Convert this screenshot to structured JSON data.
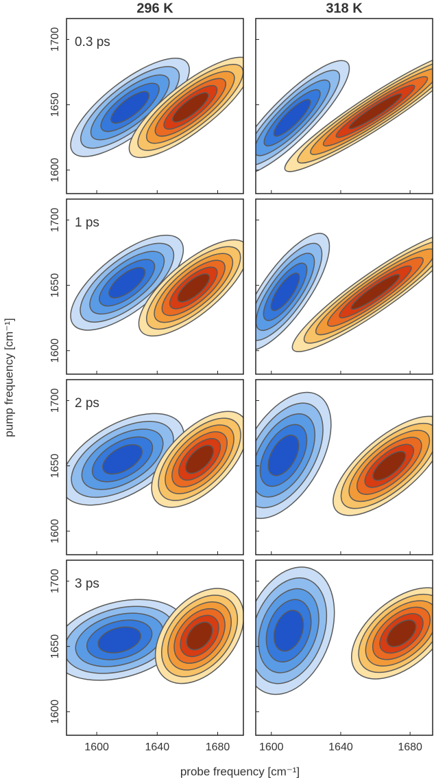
{
  "figure": {
    "xlabel": "probe frequency [cm⁻¹]",
    "ylabel": "pump frequency [cm⁻¹]"
  },
  "chart_data": [
    {
      "type": "contour",
      "title": "296 K",
      "label": "0.3 ps",
      "xlim": [
        1580,
        1697
      ],
      "ylim": [
        1582,
        1716
      ],
      "xticks": [
        1600,
        1640,
        1680
      ],
      "yticks": [
        1600,
        1650,
        1700
      ]
    },
    {
      "type": "contour",
      "title": "318 K",
      "xlim": [
        1591,
        1693
      ],
      "ylim": [
        1582,
        1716
      ],
      "xticks": [
        1600,
        1640,
        1680
      ],
      "yticks": [
        1600,
        1650,
        1700
      ]
    },
    {
      "type": "contour",
      "label": "1 ps",
      "xlim": [
        1580,
        1697
      ],
      "ylim": [
        1582,
        1716
      ],
      "xticks": [
        1600,
        1640,
        1680
      ],
      "yticks": [
        1600,
        1650,
        1700
      ]
    },
    {
      "type": "contour",
      "xlim": [
        1591,
        1693
      ],
      "ylim": [
        1582,
        1716
      ],
      "xticks": [
        1600,
        1640,
        1680
      ],
      "yticks": [
        1600,
        1650,
        1700
      ]
    },
    {
      "type": "contour",
      "label": "2 ps",
      "xlim": [
        1580,
        1697
      ],
      "ylim": [
        1582,
        1716
      ],
      "xticks": [
        1600,
        1640,
        1680
      ],
      "yticks": [
        1600,
        1650,
        1700
      ]
    },
    {
      "type": "contour",
      "xlim": [
        1591,
        1693
      ],
      "ylim": [
        1582,
        1716
      ],
      "xticks": [
        1600,
        1640,
        1680
      ],
      "yticks": [
        1600,
        1650,
        1700
      ]
    },
    {
      "type": "contour",
      "label": "3 ps",
      "xlim": [
        1580,
        1697
      ],
      "ylim": [
        1582,
        1716
      ],
      "xticks": [
        1600,
        1640,
        1680
      ],
      "yticks": [
        1600,
        1650,
        1700
      ]
    },
    {
      "type": "contour",
      "xlim": [
        1591,
        1693
      ],
      "ylim": [
        1582,
        1716
      ],
      "xticks": [
        1600,
        1640,
        1680
      ],
      "yticks": [
        1600,
        1650,
        1700
      ]
    }
  ]
}
